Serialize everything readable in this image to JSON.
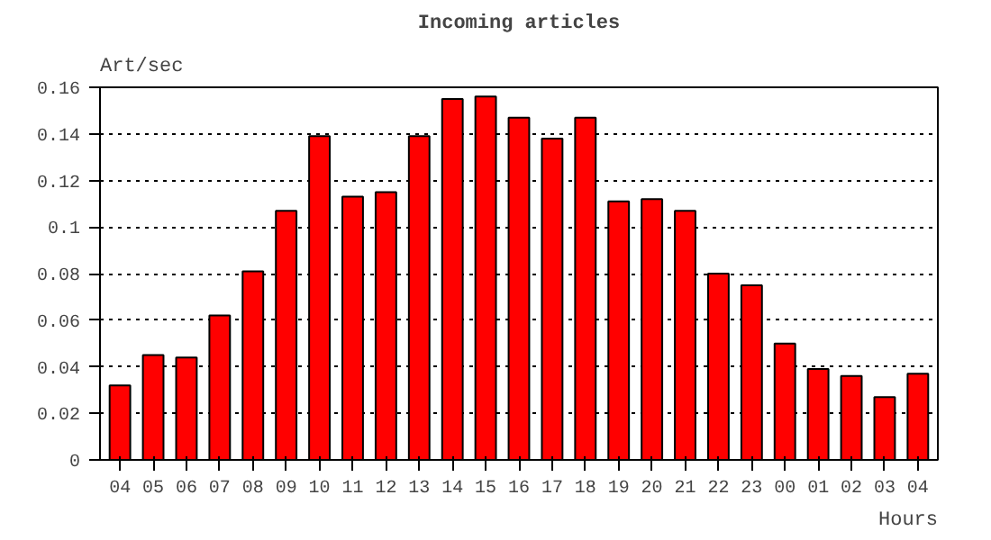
{
  "chart_data": {
    "type": "bar",
    "title": "Incoming articles",
    "ylabel": "Art/sec",
    "xlabel": "Hours",
    "categories": [
      "04",
      "05",
      "06",
      "07",
      "08",
      "09",
      "10",
      "11",
      "12",
      "13",
      "14",
      "15",
      "16",
      "17",
      "18",
      "19",
      "20",
      "21",
      "22",
      "23",
      "00",
      "01",
      "02",
      "03",
      "04"
    ],
    "values": [
      0.032,
      0.045,
      0.044,
      0.062,
      0.081,
      0.107,
      0.139,
      0.113,
      0.115,
      0.139,
      0.155,
      0.156,
      0.147,
      0.138,
      0.147,
      0.111,
      0.112,
      0.107,
      0.08,
      0.075,
      0.05,
      0.039,
      0.036,
      0.027,
      0.037
    ],
    "color": "#ff0000",
    "ylim": [
      0,
      0.16
    ],
    "yticks": [
      0,
      0.02,
      0.04,
      0.06,
      0.08,
      0.1,
      0.12,
      0.14,
      0.16
    ],
    "grid": "y"
  }
}
